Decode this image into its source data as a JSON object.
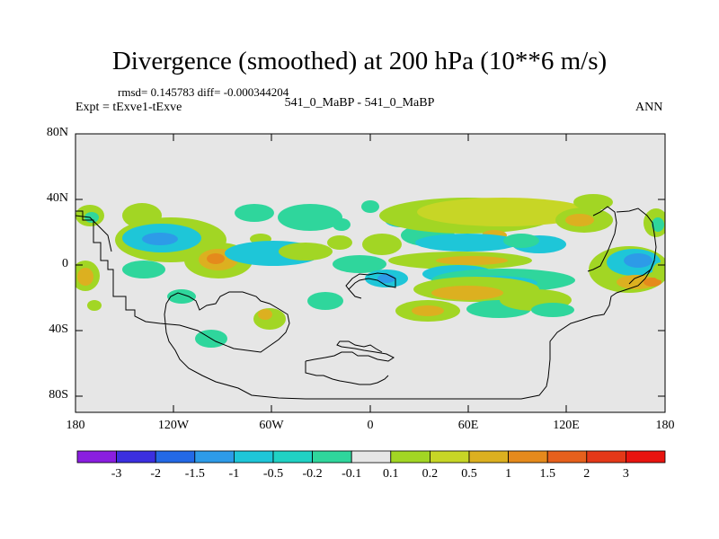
{
  "title": "Divergence (smoothed) at 200 hPa (10**6 m/s)",
  "stats": "rmsd= 0.145783 diff= -0.000344204",
  "experiment": "Expt = tExve1-tExve",
  "case": "541_0_MaBP - 541_0_MaBP",
  "season": "ANN",
  "lat_labels": [
    "80N",
    "40N",
    "0",
    "40S",
    "80S"
  ],
  "lon_labels": [
    "180",
    "120W",
    "60W",
    "0",
    "60E",
    "120E",
    "180"
  ],
  "colorbar": {
    "labels": [
      "-3",
      "-2",
      "-1.5",
      "-1",
      "-0.5",
      "-0.2",
      "-0.1",
      "0.1",
      "0.2",
      "0.5",
      "1",
      "1.5",
      "2",
      "3"
    ],
    "colors": [
      "#8a1ee0",
      "#3b2fe0",
      "#2369e6",
      "#2d9be8",
      "#1ec6d8",
      "#20d2c4",
      "#2fd69c",
      "#e6e6e6",
      "#a2d624",
      "#c7d626",
      "#dcb020",
      "#e58a1c",
      "#e6601c",
      "#e43818",
      "#e8140f"
    ]
  },
  "map": {
    "background": "#e6e6e6",
    "colors": {
      "green": "#a2d624",
      "olive": "#c7d626",
      "gold": "#dcb020",
      "orange": "#e58a1c",
      "cyan_green": "#2fd69c",
      "teal": "#20d2c4",
      "cyan": "#1ec6d8",
      "sky": "#2d9be8"
    }
  }
}
